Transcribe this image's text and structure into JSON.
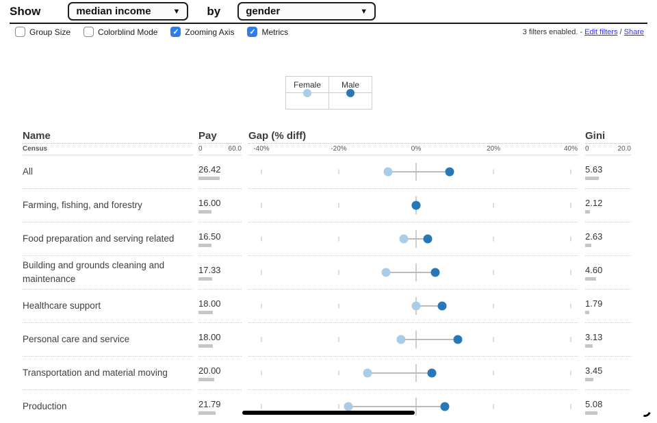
{
  "toolbar": {
    "show_label": "Show",
    "by_label": "by",
    "metric_select": {
      "value": "median income"
    },
    "group_select": {
      "value": "gender"
    },
    "caret": "▼"
  },
  "options_bar": {
    "checkboxes": [
      {
        "label": "Group Size",
        "checked": false
      },
      {
        "label": "Colorblind Mode",
        "checked": false
      },
      {
        "label": "Zooming Axis",
        "checked": true
      },
      {
        "label": "Metrics",
        "checked": true
      }
    ],
    "filters_status": "3 filters enabled. -",
    "edit_filters_label": "Edit filters",
    "links_separator": "/",
    "share_label": "Share"
  },
  "legend": {
    "items": [
      {
        "label": "Female",
        "color": "#a9cde6"
      },
      {
        "label": "Male",
        "color": "#2878b8"
      }
    ]
  },
  "table": {
    "columns": {
      "name": {
        "header": "Name",
        "subheader": "Census"
      },
      "pay": {
        "header": "Pay",
        "axis_min": "0",
        "axis_max": "60.0",
        "max_value": 60
      },
      "gap": {
        "header": "Gap (% diff)",
        "ticks": [
          "-40%",
          "-20%",
          "0%",
          "20%",
          "40%"
        ],
        "axis_range_pct": [
          -40,
          40
        ]
      },
      "gini": {
        "header": "Gini",
        "axis_min": "0",
        "axis_max": "20.0",
        "max_value": 20
      }
    },
    "rows": [
      {
        "name": "All",
        "pay_label": "26.42",
        "pay": 26.42,
        "female_gap_pct": -7.2,
        "male_gap_pct": 8.7,
        "gini_label": "5.63",
        "gini": 5.63
      },
      {
        "name": "Farming, fishing, and forestry",
        "pay_label": "16.00",
        "pay": 16.0,
        "female_gap_pct": 0,
        "male_gap_pct": 0,
        "gini_label": "2.12",
        "gini": 2.12
      },
      {
        "name": "Food preparation and serving related",
        "pay_label": "16.50",
        "pay": 16.5,
        "female_gap_pct": -3.2,
        "male_gap_pct": 3.0,
        "gini_label": "2.63",
        "gini": 2.63
      },
      {
        "name": "Building and grounds cleaning and maintenance",
        "pay_label": "17.33",
        "pay": 17.33,
        "female_gap_pct": -7.8,
        "male_gap_pct": 5.0,
        "gini_label": "4.60",
        "gini": 4.6
      },
      {
        "name": "Healthcare support",
        "pay_label": "18.00",
        "pay": 18.0,
        "female_gap_pct": 0.0,
        "male_gap_pct": 6.7,
        "gini_label": "1.79",
        "gini": 1.79
      },
      {
        "name": "Personal care and service",
        "pay_label": "18.00",
        "pay": 18.0,
        "female_gap_pct": -3.9,
        "male_gap_pct": 10.8,
        "gini_label": "3.13",
        "gini": 3.13
      },
      {
        "name": "Transportation and material moving",
        "pay_label": "20.00",
        "pay": 20.0,
        "female_gap_pct": -12.6,
        "male_gap_pct": 4.1,
        "gini_label": "3.45",
        "gini": 3.45
      },
      {
        "name": "Production",
        "pay_label": "21.79",
        "pay": 21.79,
        "female_gap_pct": -17.5,
        "male_gap_pct": 7.4,
        "gini_label": "5.08",
        "gini": 5.08
      }
    ]
  },
  "chart_data": {
    "type": "scatter",
    "title": "median income by gender (dumbbell dot plot)",
    "categories": [
      "All",
      "Farming, fishing, and forestry",
      "Food preparation and serving related",
      "Building and grounds cleaning and maintenance",
      "Healthcare support",
      "Personal care and service",
      "Transportation and material moving",
      "Production"
    ],
    "series": [
      {
        "name": "Female",
        "gap_pct": [
          -7.2,
          0,
          -3.2,
          -7.8,
          0,
          -3.9,
          -12.6,
          -17.5
        ]
      },
      {
        "name": "Male",
        "gap_pct": [
          8.7,
          0,
          3.0,
          5.0,
          6.7,
          10.8,
          4.1,
          7.4
        ]
      }
    ],
    "pay_values": [
      26.42,
      16.0,
      16.5,
      17.33,
      18.0,
      18.0,
      20.0,
      21.79
    ],
    "gini_values": [
      5.63,
      2.12,
      2.63,
      4.6,
      1.79,
      3.13,
      3.45,
      5.08
    ],
    "xlabel": "Gap (% diff)",
    "x_range": [
      -40,
      40
    ],
    "pay_axis_range": [
      0,
      60
    ],
    "gini_axis_range": [
      0,
      20
    ],
    "legend_position": "top-center",
    "grid": false
  },
  "colors": {
    "female_dot": "#a9cde6",
    "male_dot": "#2878b8",
    "checkbox_checked": "#2f7cf6",
    "link": "#3333ee",
    "metric_bar": "#c6c6c6",
    "scrollbar": "#000000"
  }
}
